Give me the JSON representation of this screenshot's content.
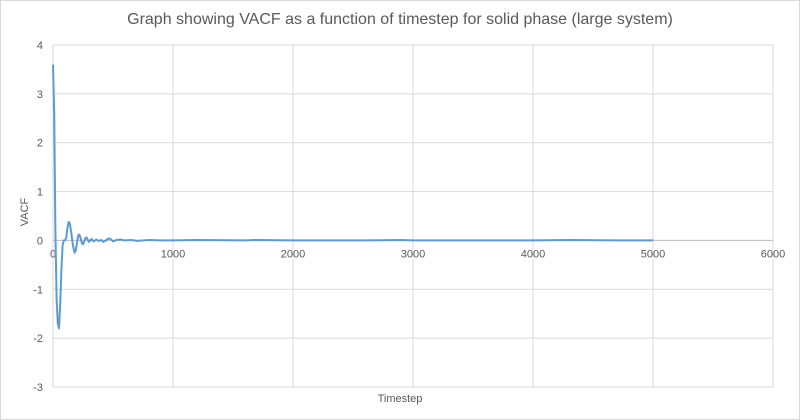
{
  "chart_data": {
    "type": "line",
    "title": "Graph showing VACF as a function of timestep for solid phase (large system)",
    "xlabel": "Timestep",
    "ylabel": "VACF",
    "xlim": [
      0,
      6000
    ],
    "ylim": [
      -3,
      4
    ],
    "x_ticks": [
      "0",
      "1000",
      "2000",
      "3000",
      "4000",
      "5000",
      "6000"
    ],
    "y_ticks": [
      "4",
      "3",
      "2",
      "1",
      "0",
      "-1",
      "-2",
      "-3"
    ],
    "grid": true,
    "legend": "none",
    "line_color": "#5b9bd5",
    "series": [
      {
        "x": [
          0,
          10,
          20,
          30,
          40,
          50,
          60,
          70,
          80,
          90,
          100,
          110,
          120,
          130,
          140,
          150,
          160,
          170,
          180,
          190,
          200,
          210,
          220,
          230,
          240,
          250,
          260,
          270,
          280,
          290,
          300,
          320,
          340,
          360,
          380,
          400,
          420,
          440,
          460,
          480,
          500,
          530,
          560,
          600,
          650,
          700,
          800,
          900,
          1000,
          1200,
          1600,
          1700,
          2000,
          2600,
          2900,
          3000,
          4000,
          4300,
          4700,
          5000
        ],
        "y": [
          3.6,
          2.6,
          0.2,
          -1.2,
          -1.7,
          -1.8,
          -1.3,
          -0.6,
          -0.1,
          0.0,
          0.0,
          0.05,
          0.25,
          0.38,
          0.35,
          0.2,
          0.0,
          -0.15,
          -0.25,
          -0.2,
          -0.05,
          0.1,
          0.12,
          0.05,
          -0.05,
          -0.08,
          -0.02,
          0.05,
          0.06,
          0.01,
          -0.03,
          0.03,
          -0.02,
          0.02,
          -0.01,
          0.01,
          -0.03,
          0.0,
          0.04,
          0.03,
          -0.02,
          0.01,
          0.02,
          0.0,
          0.01,
          -0.01,
          0.01,
          0.0,
          0.0,
          0.01,
          0.0,
          0.01,
          0.0,
          0.0,
          0.01,
          0.0,
          0.0,
          0.01,
          0.0,
          0.0
        ]
      }
    ]
  }
}
